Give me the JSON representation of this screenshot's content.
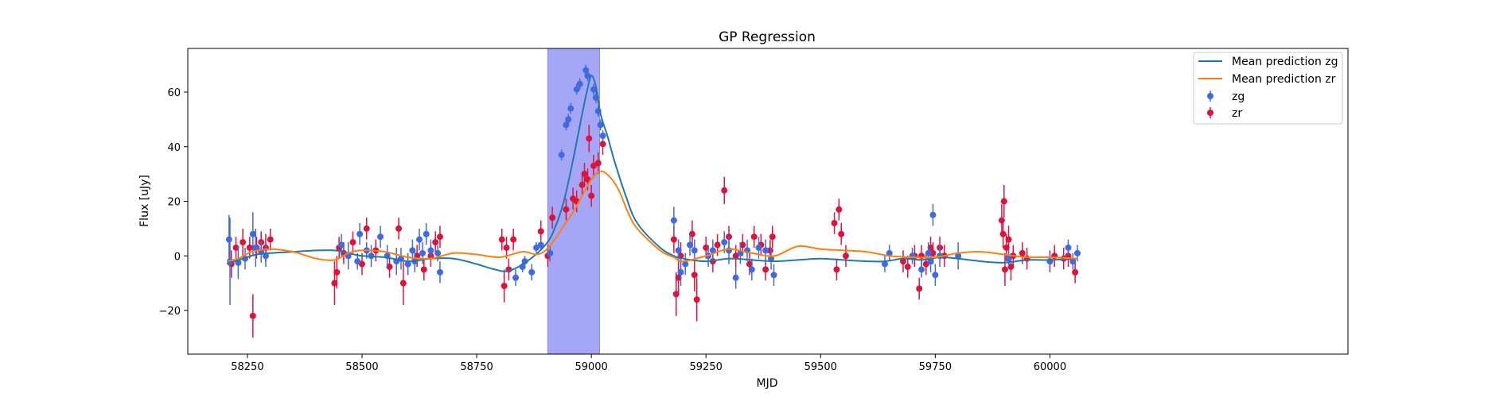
{
  "chart_data": {
    "type": "scatter",
    "title": "GP Regression",
    "xlabel": "MJD",
    "ylabel": "Flux [uJy]",
    "xlim": [
      58120,
      60650
    ],
    "ylim": [
      -36,
      76
    ],
    "xticks": [
      58250,
      58500,
      58750,
      59000,
      59250,
      59500,
      59750,
      60000
    ],
    "yticks": [
      -20,
      0,
      20,
      40,
      60
    ],
    "grid": false,
    "legend_position": "top-right",
    "highlight_span": {
      "x_start": 58905,
      "x_end": 59018,
      "color": "#a6a6f7"
    },
    "colors": {
      "zg_points": "#4169e1",
      "zr_points": "#dc143c",
      "zg_line": "#1f77b4",
      "zr_line": "#ff7f0e",
      "span": "#a6a6f7"
    },
    "legend": [
      {
        "label": "Mean prediction zg",
        "kind": "line",
        "color": "#1f77b4"
      },
      {
        "label": "Mean prediction zr",
        "kind": "line",
        "color": "#ff7f0e"
      },
      {
        "label": "zg",
        "kind": "errorbar",
        "color": "#4169e1"
      },
      {
        "label": "zr",
        "kind": "errorbar",
        "color": "#dc143c"
      }
    ],
    "series": [
      {
        "name": "Mean prediction zg",
        "kind": "line",
        "color": "#1f77b4",
        "x": [
          58205,
          58240,
          58270,
          58300,
          58350,
          58400,
          58440,
          58470,
          58500,
          58550,
          58600,
          58650,
          58700,
          58750,
          58790,
          58820,
          58860,
          58900,
          58920,
          58940,
          58960,
          58980,
          58990,
          59000,
          59010,
          59020,
          59035,
          59050,
          59075,
          59100,
          59150,
          59180,
          59200,
          59250,
          59300,
          59350,
          59400,
          59450,
          59500,
          59550,
          59600,
          59640,
          59680,
          59720,
          59760,
          59800,
          59850,
          59900,
          59950,
          60000,
          60060
        ],
        "y": [
          -3,
          -1,
          0.5,
          1,
          1.5,
          2,
          2,
          1,
          0,
          -0.5,
          -2,
          -1,
          -1,
          -3,
          -5,
          -5.5,
          -2,
          4,
          10,
          20,
          35,
          52,
          60,
          66,
          62,
          52,
          44,
          35,
          22,
          12,
          3,
          0,
          -1,
          -2,
          -1,
          -1.5,
          -2,
          -1.5,
          -1,
          -1.5,
          -2,
          -2,
          -1,
          -1.5,
          -0.5,
          -1,
          -2,
          -2.5,
          -1.5,
          -1.5,
          -1
        ]
      },
      {
        "name": "Mean prediction zr",
        "kind": "line",
        "color": "#ff7f0e",
        "x": [
          58205,
          58230,
          58260,
          58300,
          58350,
          58400,
          58440,
          58470,
          58500,
          58550,
          58600,
          58650,
          58700,
          58750,
          58800,
          58850,
          58880,
          58900,
          58920,
          58940,
          58960,
          58980,
          59000,
          59020,
          59040,
          59060,
          59080,
          59100,
          59150,
          59180,
          59200,
          59250,
          59300,
          59350,
          59400,
          59450,
          59500,
          59550,
          59600,
          59650,
          59700,
          59750,
          59800,
          59850,
          59900,
          59950,
          60000,
          60060
        ],
        "y": [
          -2,
          -1,
          1.5,
          2.5,
          1.5,
          -1,
          -1.5,
          1,
          2,
          1.5,
          -0.5,
          -1,
          1,
          0.5,
          -0.5,
          1.5,
          0.5,
          2,
          6,
          11,
          16,
          22,
          28,
          31,
          29,
          24,
          16,
          10,
          2,
          -0.5,
          -2,
          0,
          2.5,
          1,
          0,
          3.5,
          2.5,
          2,
          1.5,
          0,
          -0.5,
          -0.5,
          1,
          1.5,
          0.5,
          -0.5,
          -0.5,
          -1
        ]
      },
      {
        "name": "zg",
        "kind": "errorbar",
        "color": "#4169e1",
        "points": [
          [
            58210,
            6,
            9
          ],
          [
            58212,
            -2,
            16
          ],
          [
            58230,
            -2.5,
            6
          ],
          [
            58245,
            -1,
            4
          ],
          [
            58262,
            8,
            8
          ],
          [
            58268,
            3,
            7
          ],
          [
            58280,
            1.5,
            4
          ],
          [
            58290,
            0,
            4
          ],
          [
            58455,
            4,
            4
          ],
          [
            58470,
            0,
            5
          ],
          [
            58490,
            -2,
            3
          ],
          [
            58495,
            8,
            4
          ],
          [
            58510,
            2,
            3
          ],
          [
            58520,
            0,
            4
          ],
          [
            58540,
            7,
            4
          ],
          [
            58555,
            0,
            4
          ],
          [
            58575,
            -2,
            5
          ],
          [
            58585,
            -1,
            4
          ],
          [
            58600,
            -3,
            4
          ],
          [
            58610,
            2,
            4
          ],
          [
            58615,
            -2,
            4
          ],
          [
            58625,
            6,
            4
          ],
          [
            58632,
            1,
            4
          ],
          [
            58640,
            8,
            4
          ],
          [
            58650,
            2,
            4
          ],
          [
            58665,
            1,
            3
          ],
          [
            58670,
            -6,
            4
          ],
          [
            58835,
            -8,
            3
          ],
          [
            58850,
            -4,
            2
          ],
          [
            58855,
            -2,
            2
          ],
          [
            58870,
            -6,
            3
          ],
          [
            58880,
            3,
            2
          ],
          [
            58890,
            4,
            2
          ],
          [
            58910,
            1,
            3
          ],
          [
            58935,
            37,
            2
          ],
          [
            58945,
            48,
            2
          ],
          [
            58950,
            50,
            2
          ],
          [
            58955,
            54,
            2
          ],
          [
            58968,
            61,
            2
          ],
          [
            58975,
            63,
            2
          ],
          [
            58988,
            68,
            2
          ],
          [
            58992,
            66,
            2
          ],
          [
            59005,
            61,
            2
          ],
          [
            59010,
            58,
            2
          ],
          [
            59015,
            53,
            2
          ],
          [
            59020,
            48,
            2
          ],
          [
            59025,
            44,
            2
          ],
          [
            59180,
            13,
            5
          ],
          [
            59190,
            2,
            4
          ],
          [
            59195,
            -6,
            5
          ],
          [
            59205,
            -3,
            4
          ],
          [
            59215,
            4,
            4
          ],
          [
            59225,
            2,
            4
          ],
          [
            59255,
            0,
            4
          ],
          [
            59265,
            2,
            4
          ],
          [
            59290,
            5,
            4
          ],
          [
            59300,
            2,
            5
          ],
          [
            59315,
            -8,
            4
          ],
          [
            59325,
            1,
            4
          ],
          [
            59340,
            2,
            4
          ],
          [
            59350,
            -5,
            4
          ],
          [
            59365,
            3,
            4
          ],
          [
            59380,
            2,
            4
          ],
          [
            59392,
            -1,
            4
          ],
          [
            59398,
            -7,
            4
          ],
          [
            59640,
            -3,
            3
          ],
          [
            59650,
            1,
            3
          ],
          [
            59700,
            0,
            3
          ],
          [
            59720,
            -5,
            3
          ],
          [
            59735,
            1,
            4
          ],
          [
            59740,
            -2,
            4
          ],
          [
            59745,
            15,
            4
          ],
          [
            59750,
            -7,
            4
          ],
          [
            59760,
            0,
            4
          ],
          [
            59800,
            0,
            5
          ],
          [
            59910,
            -1,
            3
          ],
          [
            60000,
            -2,
            3
          ],
          [
            60040,
            3,
            3
          ],
          [
            60050,
            -2,
            3
          ],
          [
            60060,
            1,
            3
          ]
        ]
      },
      {
        "name": "zr",
        "kind": "errorbar",
        "color": "#dc143c",
        "points": [
          [
            58215,
            -3,
            5
          ],
          [
            58225,
            3,
            4
          ],
          [
            58240,
            5,
            5
          ],
          [
            58255,
            3,
            4
          ],
          [
            58262,
            -22,
            8
          ],
          [
            58270,
            3,
            4
          ],
          [
            58280,
            5,
            4
          ],
          [
            58290,
            3,
            5
          ],
          [
            58300,
            6,
            4
          ],
          [
            58440,
            -10,
            8
          ],
          [
            58445,
            -6,
            6
          ],
          [
            58450,
            3,
            4
          ],
          [
            58460,
            1,
            4
          ],
          [
            58480,
            5,
            4
          ],
          [
            58500,
            -3,
            4
          ],
          [
            58510,
            10,
            4
          ],
          [
            58530,
            2,
            4
          ],
          [
            58560,
            -4,
            4
          ],
          [
            58580,
            10,
            4
          ],
          [
            58590,
            -10,
            8
          ],
          [
            58600,
            -3,
            4
          ],
          [
            58620,
            0,
            4
          ],
          [
            58635,
            -5,
            4
          ],
          [
            58650,
            0,
            4
          ],
          [
            58660,
            5,
            4
          ],
          [
            58670,
            7,
            4
          ],
          [
            58805,
            6,
            4
          ],
          [
            58810,
            -11,
            6
          ],
          [
            58815,
            3,
            4
          ],
          [
            58820,
            -5,
            4
          ],
          [
            58830,
            6,
            4
          ],
          [
            58890,
            9,
            4
          ],
          [
            58905,
            0,
            4
          ],
          [
            58915,
            14,
            4
          ],
          [
            58945,
            17,
            4
          ],
          [
            58960,
            21,
            4
          ],
          [
            58968,
            20,
            4
          ],
          [
            58980,
            26,
            4
          ],
          [
            58985,
            30,
            4
          ],
          [
            58992,
            28,
            4
          ],
          [
            58995,
            43,
            5
          ],
          [
            59000,
            22,
            4
          ],
          [
            59005,
            33,
            4
          ],
          [
            59015,
            34,
            4
          ],
          [
            59025,
            41,
            4
          ],
          [
            59180,
            6,
            5
          ],
          [
            59185,
            -14,
            8
          ],
          [
            59190,
            -8,
            6
          ],
          [
            59195,
            0,
            5
          ],
          [
            59220,
            8,
            5
          ],
          [
            59225,
            -7,
            6
          ],
          [
            59230,
            -16,
            8
          ],
          [
            59250,
            3,
            4
          ],
          [
            59265,
            -2,
            4
          ],
          [
            59275,
            4,
            4
          ],
          [
            59290,
            24,
            5
          ],
          [
            59300,
            7,
            4
          ],
          [
            59315,
            0,
            4
          ],
          [
            59330,
            4,
            4
          ],
          [
            59345,
            -3,
            4
          ],
          [
            59355,
            7,
            4
          ],
          [
            59370,
            4,
            4
          ],
          [
            59380,
            -5,
            4
          ],
          [
            59390,
            2,
            4
          ],
          [
            59395,
            7,
            4
          ],
          [
            59530,
            12,
            4
          ],
          [
            59535,
            -5,
            4
          ],
          [
            59540,
            17,
            4
          ],
          [
            59545,
            8,
            4
          ],
          [
            59555,
            0,
            4
          ],
          [
            59680,
            -2,
            4
          ],
          [
            59690,
            -4,
            4
          ],
          [
            59705,
            0,
            4
          ],
          [
            59715,
            -12,
            4
          ],
          [
            59720,
            0,
            4
          ],
          [
            59730,
            -3,
            4
          ],
          [
            59740,
            3,
            4
          ],
          [
            59745,
            1,
            4
          ],
          [
            59760,
            3,
            4
          ],
          [
            59770,
            0,
            4
          ],
          [
            59895,
            13,
            6
          ],
          [
            59898,
            8,
            5
          ],
          [
            59900,
            20,
            6
          ],
          [
            59902,
            -5,
            6
          ],
          [
            59905,
            3,
            5
          ],
          [
            59910,
            6,
            5
          ],
          [
            59915,
            -4,
            5
          ],
          [
            59920,
            0,
            4
          ],
          [
            59940,
            1,
            4
          ],
          [
            59950,
            -1,
            4
          ],
          [
            60000,
            -2,
            4
          ],
          [
            60010,
            0,
            4
          ],
          [
            60030,
            -1,
            4
          ],
          [
            60040,
            0,
            4
          ],
          [
            60055,
            -6,
            4
          ]
        ]
      }
    ]
  }
}
